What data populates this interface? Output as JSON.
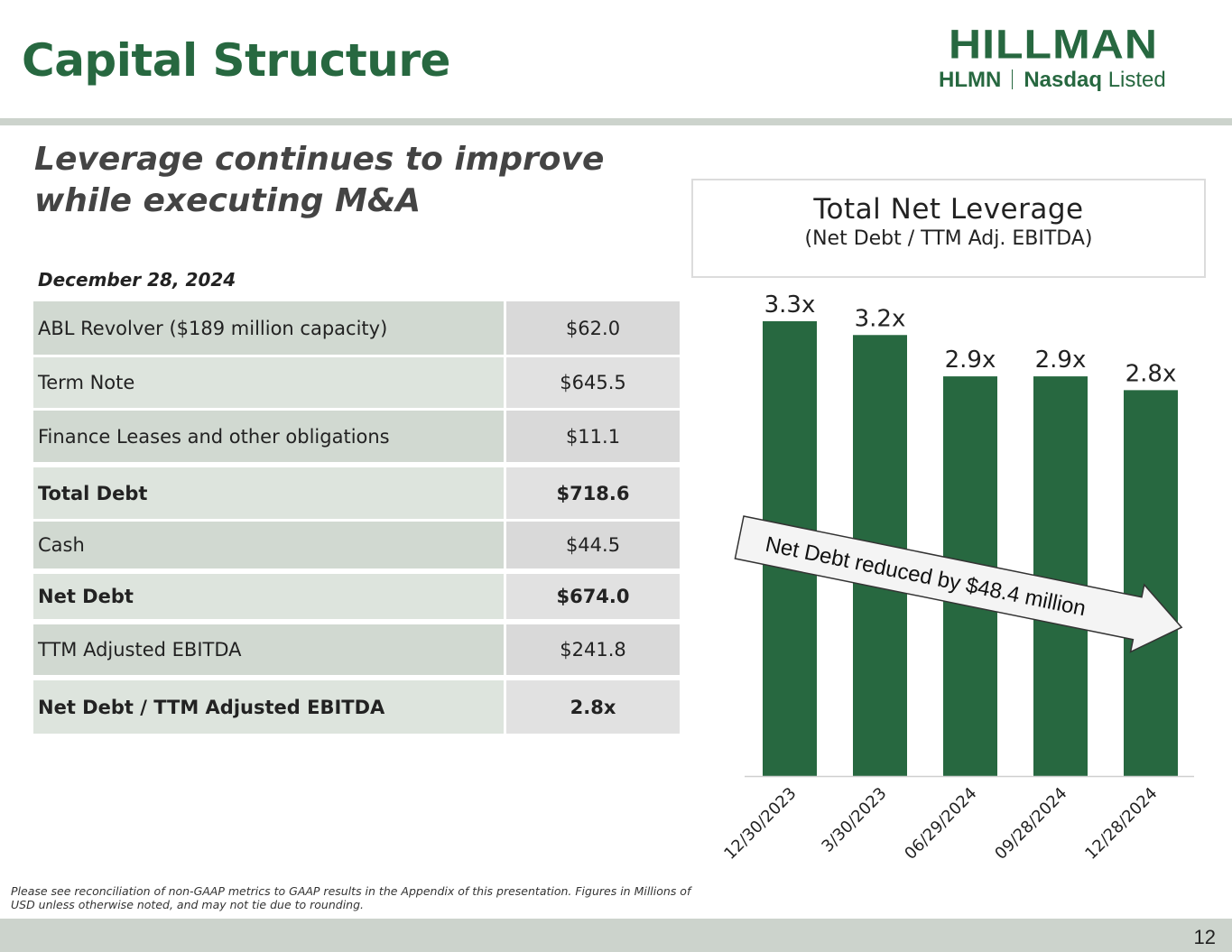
{
  "header": {
    "title": "Capital Structure",
    "logo_main": "HILLMAN",
    "logo_ticker": "HLMN",
    "logo_exchange_bold": "Nasdaq",
    "logo_exchange_rest": "Listed"
  },
  "subtitle_line1": "Leverage continues to improve",
  "subtitle_line2": "while executing M&A",
  "table": {
    "as_of": "December 28, 2024",
    "rows": [
      {
        "label": "ABL Revolver ($189 million capacity)",
        "value": "$62.0"
      },
      {
        "label": "Term Note",
        "value": "$645.5"
      },
      {
        "label": "Finance Leases and other obligations",
        "value": "$11.1"
      },
      {
        "label": "Total Debt",
        "value": "$718.6"
      },
      {
        "label": "Cash",
        "value": "$44.5"
      },
      {
        "label": "Net Debt",
        "value": "$674.0"
      },
      {
        "label": "TTM Adjusted EBITDA",
        "value": "$241.8"
      },
      {
        "label": "Net Debt / TTM Adjusted EBITDA",
        "value": "2.8x"
      }
    ]
  },
  "chart_data": {
    "type": "bar",
    "title": "Total Net Leverage",
    "subtitle": "(Net Debt / TTM Adj. EBITDA)",
    "categories": [
      "12/30/2023",
      "3/30/2023",
      "06/29/2024",
      "09/28/2024",
      "12/28/2024"
    ],
    "values": [
      3.3,
      3.2,
      2.9,
      2.9,
      2.8
    ],
    "data_labels": [
      "3.3x",
      "3.2x",
      "2.9x",
      "2.9x",
      "2.8x"
    ],
    "ylim": [
      0,
      3.3
    ],
    "annotation": "Net Debt reduced by $48.4 million",
    "bar_color": "#276840"
  },
  "footnote": "Please see reconciliation of non-GAAP metrics to GAAP results in the Appendix of this presentation. Figures in Millions of USD unless otherwise noted, and may not tie due to rounding.",
  "footer": {
    "page_number": "12"
  }
}
